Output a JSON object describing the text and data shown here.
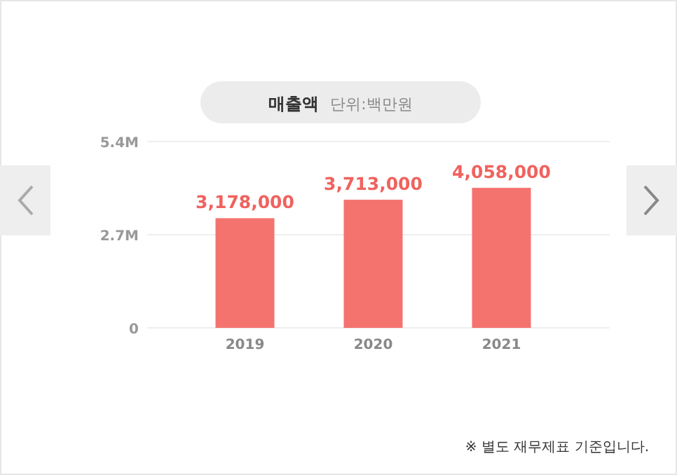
{
  "chart_data": {
    "type": "bar",
    "title": "매출액",
    "subtitle": "단위:백만원",
    "categories": [
      "2019",
      "2020",
      "2021"
    ],
    "values": [
      3178000,
      3713000,
      4058000
    ],
    "value_labels": [
      "3,178,000",
      "3,713,000",
      "4,058,000"
    ],
    "color": "#f4736f",
    "ylim": [
      0,
      5400000
    ],
    "yticks": [
      0,
      {
        "value": 2700000,
        "label": "2.7M"
      },
      {
        "value": 5400000,
        "label": "5.4M"
      }
    ],
    "grid": "y",
    "annotations": [
      "※ 별도 재무제표 기준입니다."
    ]
  }
}
